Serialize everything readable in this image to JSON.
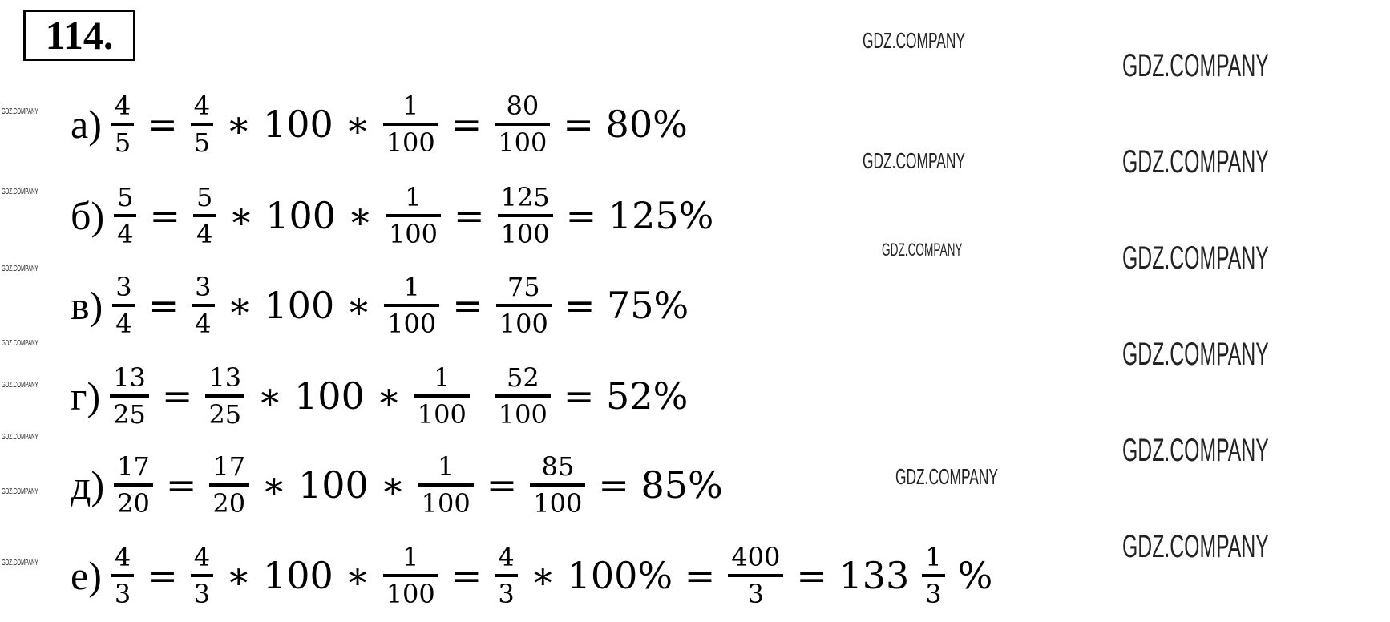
{
  "title": "114.",
  "watermark": "GDZ.COMPANY",
  "rows": [
    {
      "label": "а)",
      "tokens": [
        {
          "f": [
            "4",
            "5"
          ]
        },
        {
          "o": "="
        },
        {
          "f": [
            "4",
            "5"
          ]
        },
        {
          "o": "∗ 100 ∗"
        },
        {
          "f": [
            "1",
            "100"
          ]
        },
        {
          "o": "="
        },
        {
          "f": [
            "80",
            "100"
          ]
        },
        {
          "o": "= 80%"
        }
      ]
    },
    {
      "label": "б)",
      "tokens": [
        {
          "f": [
            "5",
            "4"
          ]
        },
        {
          "o": "="
        },
        {
          "f": [
            "5",
            "4"
          ]
        },
        {
          "o": "∗ 100 ∗"
        },
        {
          "f": [
            "1",
            "100"
          ]
        },
        {
          "o": "="
        },
        {
          "f": [
            "125",
            "100"
          ]
        },
        {
          "o": "= 125%"
        }
      ]
    },
    {
      "label": "в)",
      "tokens": [
        {
          "f": [
            "3",
            "4"
          ]
        },
        {
          "o": "="
        },
        {
          "f": [
            "3",
            "4"
          ]
        },
        {
          "o": "∗ 100 ∗"
        },
        {
          "f": [
            "1",
            "100"
          ]
        },
        {
          "o": "="
        },
        {
          "f": [
            "75",
            "100"
          ]
        },
        {
          "o": "= 75%"
        }
      ]
    },
    {
      "label": "г)",
      "tokens": [
        {
          "f": [
            "13",
            "25"
          ]
        },
        {
          "o": "="
        },
        {
          "f": [
            "13",
            "25"
          ]
        },
        {
          "o": "∗ 100 ∗"
        },
        {
          "f": [
            "1",
            "100"
          ]
        },
        {
          "o": ""
        },
        {
          "f": [
            "52",
            "100"
          ]
        },
        {
          "o": "= 52%"
        }
      ]
    },
    {
      "label": "д)",
      "tokens": [
        {
          "f": [
            "17",
            "20"
          ]
        },
        {
          "o": "="
        },
        {
          "f": [
            "17",
            "20"
          ]
        },
        {
          "o": "∗ 100 ∗"
        },
        {
          "f": [
            "1",
            "100"
          ]
        },
        {
          "o": "="
        },
        {
          "f": [
            "85",
            "100"
          ]
        },
        {
          "o": "= 85%"
        }
      ]
    },
    {
      "label": "е)",
      "tokens": [
        {
          "f": [
            "4",
            "3"
          ]
        },
        {
          "o": "="
        },
        {
          "f": [
            "4",
            "3"
          ]
        },
        {
          "o": "∗ 100 ∗"
        },
        {
          "f": [
            "1",
            "100"
          ]
        },
        {
          "o": "="
        },
        {
          "f": [
            "4",
            "3"
          ]
        },
        {
          "o": "∗ 100% ="
        },
        {
          "f": [
            "400",
            "3"
          ]
        },
        {
          "o": "= 133"
        },
        {
          "f": [
            "1",
            "3"
          ]
        },
        {
          "o": "%"
        }
      ]
    }
  ]
}
